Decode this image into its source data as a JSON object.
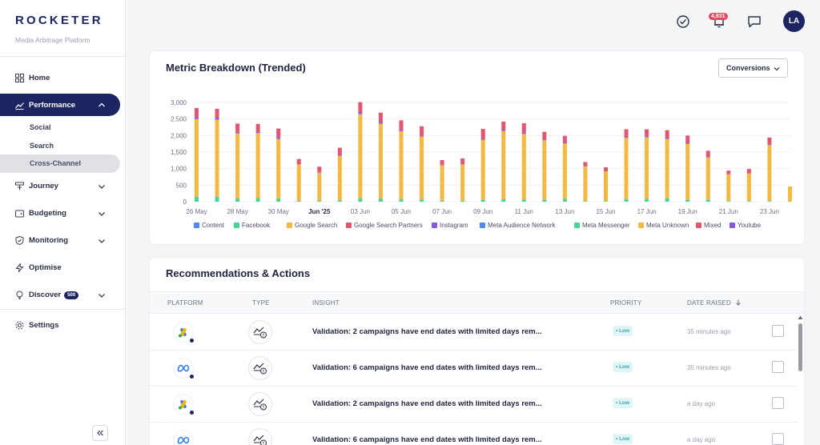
{
  "brand": {
    "name": "ROCKETER",
    "subtitle": "Media Arbitrage Platform"
  },
  "sidebar": {
    "items": [
      {
        "label": "Home",
        "icon": "grid-icon"
      },
      {
        "label": "Performance",
        "icon": "trend-icon",
        "active": true,
        "children": [
          {
            "label": "Social"
          },
          {
            "label": "Search"
          },
          {
            "label": "Cross-Channel",
            "active": true
          }
        ]
      },
      {
        "label": "Journey",
        "icon": "journey-icon"
      },
      {
        "label": "Budgeting",
        "icon": "budget-icon"
      },
      {
        "label": "Monitoring",
        "icon": "shield-icon"
      },
      {
        "label": "Optimise",
        "icon": "bolt-icon"
      },
      {
        "label": "Discover",
        "icon": "bulb-icon",
        "badge": "500"
      }
    ],
    "settings_label": "Settings"
  },
  "topbar": {
    "notifications_count": "4,931",
    "avatar_initials": "LA"
  },
  "chart_card": {
    "title": "Metric Breakdown (Trended)",
    "metric_dropdown": "Conversions"
  },
  "chart_data": {
    "type": "bar",
    "stacked": true,
    "x_tick_labels": [
      "26 May",
      "28 May",
      "30 May",
      "Jun '25",
      "03 Jun",
      "05 Jun",
      "07 Jun",
      "09 Jun",
      "11 Jun",
      "13 Jun",
      "15 Jun",
      "17 Jun",
      "19 Jun",
      "21 Jun",
      "23 Jun"
    ],
    "y_ticks": [
      "0",
      "500",
      "1,000",
      "1,500",
      "2,000",
      "2,500",
      "3,000"
    ],
    "ylim": [
      0,
      3000
    ],
    "categories": [
      "26 May",
      "27 May",
      "28 May",
      "29 May",
      "30 May",
      "31 May",
      "Jun '25",
      "02 Jun",
      "03 Jun",
      "04 Jun",
      "05 Jun",
      "06 Jun",
      "07 Jun",
      "08 Jun",
      "09 Jun",
      "10 Jun",
      "11 Jun",
      "12 Jun",
      "13 Jun",
      "14 Jun",
      "15 Jun",
      "16 Jun",
      "17 Jun",
      "18 Jun",
      "19 Jun",
      "20 Jun",
      "21 Jun",
      "22 Jun",
      "23 Jun",
      "24 Jun"
    ],
    "series": [
      {
        "name": "Meta Messenger",
        "color": "#49d39b",
        "values": [
          150,
          150,
          100,
          110,
          100,
          30,
          30,
          40,
          100,
          90,
          80,
          70,
          30,
          30,
          60,
          80,
          70,
          60,
          90,
          20,
          20,
          80,
          90,
          100,
          60,
          60,
          20,
          20,
          20,
          10
        ]
      },
      {
        "name": "Meta Unknown",
        "color": "#f3b942",
        "values": [
          2350,
          2330,
          1970,
          1970,
          1800,
          1100,
          850,
          1350,
          2550,
          2270,
          2050,
          1900,
          1070,
          1100,
          1810,
          2060,
          1980,
          1800,
          1670,
          1050,
          900,
          1850,
          1860,
          1800,
          1690,
          1280,
          810,
          840,
          1700,
          450
        ]
      },
      {
        "name": "Youtube",
        "color": "#8559d8",
        "values": [
          60,
          60,
          40,
          40,
          50,
          20,
          20,
          30,
          60,
          50,
          40,
          30,
          20,
          20,
          30,
          40,
          40,
          30,
          30,
          20,
          10,
          30,
          40,
          40,
          40,
          30,
          10,
          10,
          30,
          0
        ]
      },
      {
        "name": "Google Search Partners",
        "color": "#e4566f",
        "values": [
          270,
          270,
          250,
          230,
          260,
          140,
          160,
          210,
          300,
          280,
          290,
          280,
          140,
          160,
          300,
          240,
          280,
          220,
          200,
          110,
          110,
          230,
          200,
          220,
          210,
          170,
          100,
          120,
          190,
          0
        ]
      }
    ],
    "legend": [
      "Content",
      "Facebook",
      "Google Search",
      "Google Search Partners",
      "Instagram",
      "Meta Audience Network",
      "Meta Messenger",
      "Meta Unknown",
      "Mixed",
      "Youtube"
    ],
    "legend_colors": [
      "#4b8af0",
      "#49d39b",
      "#f3b942",
      "#e4566f",
      "#8559d8",
      "#4b8af0",
      "#49d39b",
      "#f3b942",
      "#e4566f",
      "#8559d8"
    ],
    "legend_position": "bottom",
    "grid": true
  },
  "reco_card": {
    "title": "Recommendations & Actions",
    "columns": [
      "PLATFORM",
      "TYPE",
      "INSIGHT",
      "PRIORITY",
      "DATE RAISED"
    ],
    "rows": [
      {
        "platform": "google-ads",
        "insight": "Validation: 2 campaigns have end dates with limited days rem...",
        "priority": "• Low",
        "date": "35 minutes ago"
      },
      {
        "platform": "meta",
        "insight": "Validation: 6 campaigns have end dates with limited days rem...",
        "priority": "• Low",
        "date": "35 minutes ago"
      },
      {
        "platform": "google-ads",
        "insight": "Validation: 2 campaigns have end dates with limited days rem...",
        "priority": "• Low",
        "date": "a day ago"
      },
      {
        "platform": "meta",
        "insight": "Validation: 6 campaigns have end dates with limited days rem...",
        "priority": "• Low",
        "date": "a day ago"
      }
    ]
  }
}
